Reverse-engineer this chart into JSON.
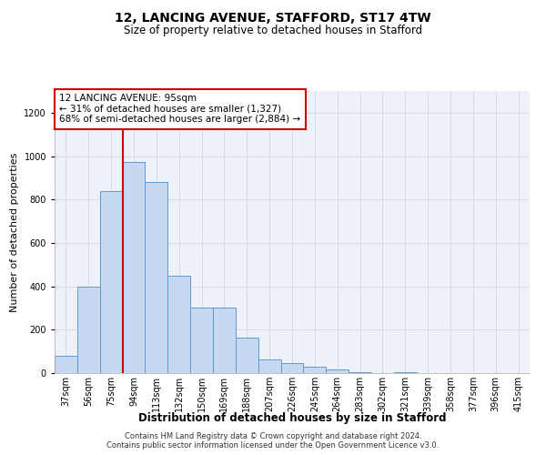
{
  "title1": "12, LANCING AVENUE, STAFFORD, ST17 4TW",
  "title2": "Size of property relative to detached houses in Stafford",
  "xlabel": "Distribution of detached houses by size in Stafford",
  "ylabel": "Number of detached properties",
  "categories": [
    "37sqm",
    "56sqm",
    "75sqm",
    "94sqm",
    "113sqm",
    "132sqm",
    "150sqm",
    "169sqm",
    "188sqm",
    "207sqm",
    "226sqm",
    "245sqm",
    "264sqm",
    "283sqm",
    "302sqm",
    "321sqm",
    "339sqm",
    "358sqm",
    "377sqm",
    "396sqm",
    "415sqm"
  ],
  "values": [
    80,
    400,
    840,
    975,
    880,
    450,
    300,
    300,
    165,
    65,
    45,
    30,
    15,
    5,
    0,
    5,
    0,
    0,
    0,
    0,
    0
  ],
  "bar_color": "#c6d9f0",
  "bar_edge_color": "#5b9bd5",
  "marker_line_index": 3,
  "marker_label_line1": "12 LANCING AVENUE: 95sqm",
  "marker_label_line2": "← 31% of detached houses are smaller (1,327)",
  "marker_label_line3": "68% of semi-detached houses are larger (2,884) →",
  "annotation_box_color": "#ffffff",
  "annotation_box_edge_color": "#cc0000",
  "red_line_color": "#cc0000",
  "footer1": "Contains HM Land Registry data © Crown copyright and database right 2024.",
  "footer2": "Contains public sector information licensed under the Open Government Licence v3.0.",
  "ylim": [
    0,
    1300
  ],
  "yticks": [
    0,
    200,
    400,
    600,
    800,
    1000,
    1200
  ],
  "title1_fontsize": 10,
  "title2_fontsize": 8.5,
  "xlabel_fontsize": 8.5,
  "ylabel_fontsize": 8,
  "tick_fontsize": 7,
  "annotation_fontsize": 7.5,
  "footer_fontsize": 6
}
